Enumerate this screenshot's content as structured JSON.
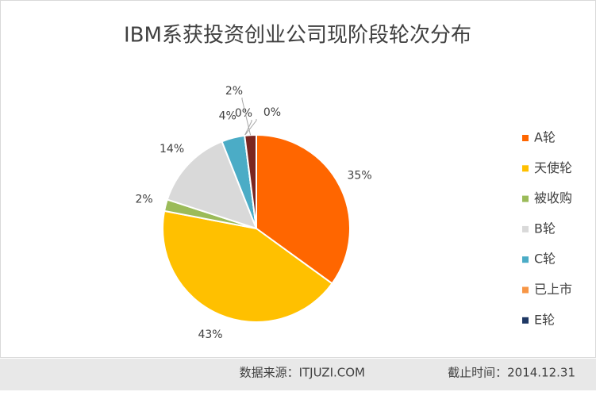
{
  "chart_data": {
    "type": "pie",
    "title": "IBM系获投资创业公司现阶段轮次分布",
    "categories": [
      "A轮",
      "天使轮",
      "被收购",
      "B轮",
      "C轮",
      "已上市",
      "E轮",
      null
    ],
    "values": [
      35,
      43,
      2,
      14,
      4,
      0,
      0,
      2
    ],
    "value_labels": [
      "35%",
      "43%",
      "2%",
      "14%",
      "4%",
      "0%",
      "0%",
      "2%"
    ],
    "colors": [
      "#ff6600",
      "#ffc000",
      "#9bbb59",
      "#d9d9d9",
      "#4bacc6",
      "#f79646",
      "#1f3864",
      "#7b2620"
    ],
    "legend": "right"
  },
  "footer": {
    "source": "数据来源：ITJUZI.COM",
    "date": "截止时间：2014.12.31"
  }
}
